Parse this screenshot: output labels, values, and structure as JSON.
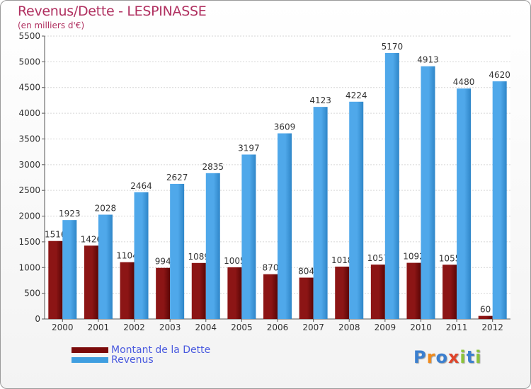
{
  "chart_data": {
    "type": "bar",
    "title": "Revenus/Dette - LESPINASSE",
    "subtitle": "(en milliers d'€)",
    "categories": [
      "2000",
      "2001",
      "2002",
      "2003",
      "2004",
      "2005",
      "2006",
      "2007",
      "2008",
      "2009",
      "2010",
      "2011",
      "2012"
    ],
    "series": [
      {
        "name": "Montant de la Dette",
        "color": "#7a0a0a",
        "values": [
          1516,
          1426,
          1104,
          994,
          1089,
          1005,
          870,
          804,
          1018,
          1057,
          1092,
          1055,
          60
        ],
        "labels": [
          "1516",
          "1426",
          "1104",
          "994",
          "1089",
          "1005",
          "870",
          "804",
          "1018",
          "1057",
          "1092",
          "1055",
          "60"
        ]
      },
      {
        "name": "Revenus",
        "color": "#3f9ee0",
        "values": [
          1923,
          2028,
          2464,
          2627,
          2835,
          3197,
          3609,
          4123,
          4224,
          5170,
          4913,
          4480,
          4620
        ],
        "labels": [
          "1923",
          "2028",
          "2464",
          "2627",
          "2835",
          "3197",
          "3609",
          "4123",
          "4224",
          "5170",
          "4913",
          "4480",
          "4620"
        ]
      }
    ],
    "ylim": [
      0,
      5500
    ],
    "yticks": [
      0,
      500,
      1000,
      1500,
      2000,
      2500,
      3000,
      3500,
      4000,
      4500,
      5000,
      5500
    ],
    "grid": true,
    "legend_position": "bottom-left"
  },
  "brand": {
    "text": "Proxiti",
    "letter_colors": [
      "#3b7fcf",
      "#f08a1c",
      "#3b7fcf",
      "#e0442a",
      "#8bc33a",
      "#3b7fcf",
      "#8bc33a"
    ]
  }
}
